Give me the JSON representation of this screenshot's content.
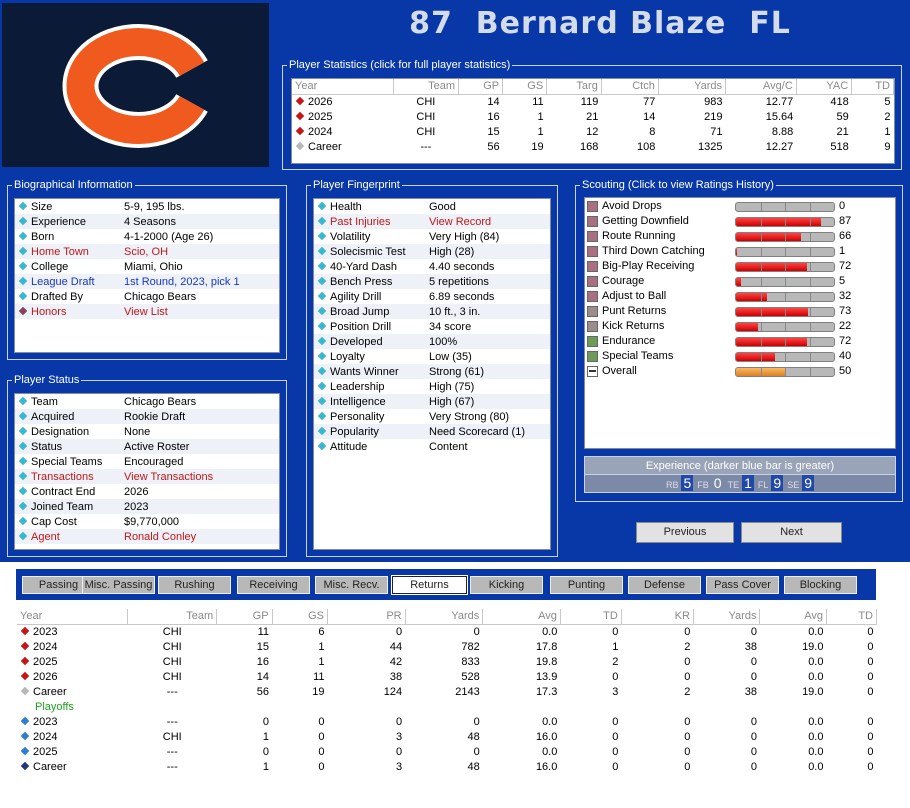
{
  "player": {
    "number": "87",
    "name": "Bernard Blaze",
    "position": "FL"
  },
  "colors": {
    "panel_bg": "#0838a8",
    "logo_bg": "#0b1a36",
    "logo_orange": "#f05a1e",
    "bar_red": "#e82020",
    "bar_orange": "#f0a040"
  },
  "stats": {
    "label": "Player Statistics (click for full player statistics)",
    "headers": [
      "Year",
      "Team",
      "GP",
      "GS",
      "Targ",
      "Ctch",
      "Yards",
      "Avg/C",
      "YAC",
      "TD"
    ],
    "rows": [
      {
        "year": "2026",
        "team": "CHI",
        "gp": "14",
        "gs": "11",
        "targ": "119",
        "ctch": "77",
        "yards": "983",
        "avg": "12.77",
        "yac": "418",
        "td": "5"
      },
      {
        "year": "2025",
        "team": "CHI",
        "gp": "16",
        "gs": "1",
        "targ": "21",
        "ctch": "14",
        "yards": "219",
        "avg": "15.64",
        "yac": "59",
        "td": "2"
      },
      {
        "year": "2024",
        "team": "CHI",
        "gp": "15",
        "gs": "1",
        "targ": "12",
        "ctch": "8",
        "yards": "71",
        "avg": "8.88",
        "yac": "21",
        "td": "1"
      },
      {
        "year": "Career",
        "team": "---",
        "gp": "56",
        "gs": "19",
        "targ": "168",
        "ctch": "108",
        "yards": "1325",
        "avg": "12.27",
        "yac": "518",
        "td": "9"
      }
    ]
  },
  "bio": {
    "label": "Biographical Information",
    "rows": [
      {
        "k": "Size",
        "v": "5-9, 195 lbs."
      },
      {
        "k": "Experience",
        "v": "4 Seasons"
      },
      {
        "k": "Born",
        "v": "4-1-2000 (Age 26)"
      },
      {
        "k": "Home Town",
        "v": "Scio, OH"
      },
      {
        "k": "College",
        "v": "Miami, Ohio"
      },
      {
        "k": "League Draft",
        "v": "1st Round, 2023, pick 1"
      },
      {
        "k": "Drafted By",
        "v": "Chicago Bears"
      },
      {
        "k": "Honors",
        "v": "View List"
      }
    ]
  },
  "status": {
    "label": "Player Status",
    "rows": [
      {
        "k": "Team",
        "v": "Chicago Bears"
      },
      {
        "k": "Acquired",
        "v": "Rookie Draft"
      },
      {
        "k": "Designation",
        "v": "None"
      },
      {
        "k": "Status",
        "v": "Active Roster"
      },
      {
        "k": "Special Teams",
        "v": "Encouraged"
      },
      {
        "k": "Transactions",
        "v": "View Transactions"
      },
      {
        "k": "Contract End",
        "v": "2026"
      },
      {
        "k": "Joined Team",
        "v": "2023"
      },
      {
        "k": "Cap Cost",
        "v": "$9,770,000"
      },
      {
        "k": "Agent",
        "v": "Ronald Conley"
      }
    ]
  },
  "fingerprint": {
    "label": "Player Fingerprint",
    "rows": [
      {
        "k": "Health",
        "v": "Good"
      },
      {
        "k": "Past Injuries",
        "v": "View Record"
      },
      {
        "k": "Volatility",
        "v": "Very High (84)"
      },
      {
        "k": "Solecismic Test",
        "v": "High (28)"
      },
      {
        "k": "40-Yard Dash",
        "v": "4.40 seconds"
      },
      {
        "k": "Bench Press",
        "v": "5 repetitions"
      },
      {
        "k": "Agility Drill",
        "v": "6.89 seconds"
      },
      {
        "k": "Broad Jump",
        "v": "10 ft., 3 in."
      },
      {
        "k": "Position Drill",
        "v": "34 score"
      },
      {
        "k": "Developed",
        "v": "100%"
      },
      {
        "k": "Loyalty",
        "v": "Low (35)"
      },
      {
        "k": "Wants Winner",
        "v": "Strong (61)"
      },
      {
        "k": "Leadership",
        "v": "High (75)"
      },
      {
        "k": "Intelligence",
        "v": "High (67)"
      },
      {
        "k": "Personality",
        "v": "Very Strong (80)"
      },
      {
        "k": "Popularity",
        "v": "Need Scorecard (1)"
      },
      {
        "k": "Attitude",
        "v": "Content"
      }
    ]
  },
  "scouting": {
    "label": "Scouting (Click to view Ratings History)",
    "rows": [
      {
        "name": "Avoid Drops",
        "value": 0,
        "color": "#a87080"
      },
      {
        "name": "Getting Downfield",
        "value": 87,
        "color": "#a87080"
      },
      {
        "name": "Route Running",
        "value": 66,
        "color": "#a87080"
      },
      {
        "name": "Third Down Catching",
        "value": 1,
        "color": "#a87080"
      },
      {
        "name": "Big-Play Receiving",
        "value": 72,
        "color": "#a87080"
      },
      {
        "name": "Courage",
        "value": 5,
        "color": "#a87080"
      },
      {
        "name": "Adjust to Ball",
        "value": 32,
        "color": "#a87080"
      },
      {
        "name": "Punt Returns",
        "value": 73,
        "color": "#9c8c8c"
      },
      {
        "name": "Kick Returns",
        "value": 22,
        "color": "#9c8c8c"
      },
      {
        "name": "Endurance",
        "value": 72,
        "color": "#6c9c58"
      },
      {
        "name": "Special Teams",
        "value": 40,
        "color": "#6c9c58"
      },
      {
        "name": "Overall",
        "value": 50,
        "color": "#ffffff"
      }
    ]
  },
  "experience": {
    "label": "Experience (darker blue bar is greater)",
    "items": [
      {
        "pos": "RB",
        "val": "5"
      },
      {
        "pos": "FB",
        "val": "0"
      },
      {
        "pos": "TE",
        "val": "1"
      },
      {
        "pos": "FL",
        "val": "9"
      },
      {
        "pos": "SE",
        "val": "9"
      }
    ]
  },
  "nav": {
    "previous": "Previous",
    "next": "Next"
  },
  "tabs": [
    "Passing",
    "Misc. Passing",
    "Rushing",
    "Receiving",
    "Misc. Recv.",
    "Returns",
    "Kicking",
    "Punting",
    "Defense",
    "Pass Cover",
    "Blocking"
  ],
  "returns": {
    "headers": [
      "Year",
      "Team",
      "GP",
      "GS",
      "PR",
      "Yards",
      "Avg",
      "TD",
      "KR",
      "Yards",
      "Avg",
      "TD"
    ],
    "rows": [
      {
        "year": "2023",
        "team": "CHI",
        "c": [
          "11",
          "6",
          "0",
          "0",
          "0.0",
          "0",
          "0",
          "0",
          "0.0",
          "0"
        ]
      },
      {
        "year": "2024",
        "team": "CHI",
        "c": [
          "15",
          "1",
          "44",
          "782",
          "17.8",
          "1",
          "2",
          "38",
          "19.0",
          "0"
        ]
      },
      {
        "year": "2025",
        "team": "CHI",
        "c": [
          "16",
          "1",
          "42",
          "833",
          "19.8",
          "2",
          "0",
          "0",
          "0.0",
          "0"
        ]
      },
      {
        "year": "2026",
        "team": "CHI",
        "c": [
          "14",
          "11",
          "38",
          "528",
          "13.9",
          "0",
          "0",
          "0",
          "0.0",
          "0"
        ]
      },
      {
        "year": "Career",
        "team": "---",
        "c": [
          "56",
          "19",
          "124",
          "2143",
          "17.3",
          "3",
          "2",
          "38",
          "19.0",
          "0"
        ]
      }
    ],
    "playoffs_label": "Playoffs",
    "playoffs": [
      {
        "year": "2023",
        "team": "---",
        "c": [
          "0",
          "0",
          "0",
          "0",
          "0.0",
          "0",
          "0",
          "0",
          "0.0",
          "0"
        ]
      },
      {
        "year": "2024",
        "team": "CHI",
        "c": [
          "1",
          "0",
          "3",
          "48",
          "16.0",
          "0",
          "0",
          "0",
          "0.0",
          "0"
        ]
      },
      {
        "year": "2025",
        "team": "---",
        "c": [
          "0",
          "0",
          "0",
          "0",
          "0.0",
          "0",
          "0",
          "0",
          "0.0",
          "0"
        ]
      },
      {
        "year": "Career",
        "team": "---",
        "c": [
          "1",
          "0",
          "3",
          "48",
          "16.0",
          "0",
          "0",
          "0",
          "0.0",
          "0"
        ]
      }
    ]
  }
}
